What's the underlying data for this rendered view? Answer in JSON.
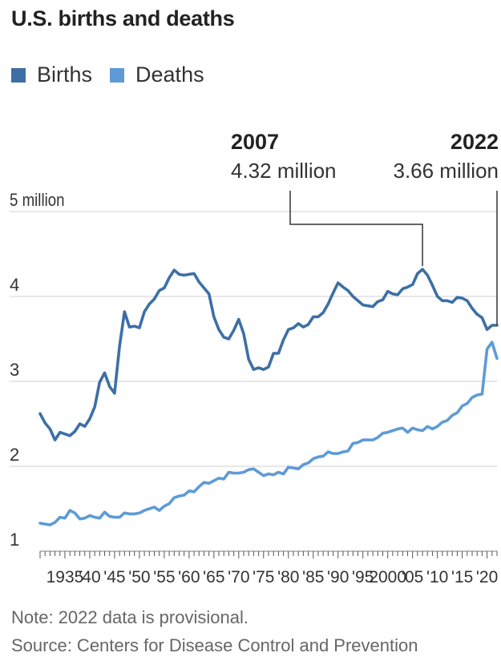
{
  "header": {
    "title": "U.S. births and deaths"
  },
  "footer": {
    "note": "Note: 2022 data is provisional.",
    "source": "Source: Centers for Disease Control and Prevention"
  },
  "colors": {
    "births": "#3d6fa5",
    "deaths": "#5e9bd6",
    "grid": "#d9d9d9",
    "annotation": "#333333"
  },
  "chart_data": {
    "type": "line",
    "title": "U.S. births and deaths",
    "ylim": [
      1,
      5
    ],
    "xlim": [
      1930,
      2022
    ],
    "y_ticks": [
      {
        "value": 5,
        "label": "5 million"
      },
      {
        "value": 4,
        "label": "4"
      },
      {
        "value": 3,
        "label": "3"
      },
      {
        "value": 2,
        "label": "2"
      },
      {
        "value": 1,
        "label": "1"
      }
    ],
    "x_tick_labels": [
      {
        "value": 1935,
        "label": "1935"
      },
      {
        "value": 1940,
        "label": "'40"
      },
      {
        "value": 1945,
        "label": "'45"
      },
      {
        "value": 1950,
        "label": "'50"
      },
      {
        "value": 1955,
        "label": "'55"
      },
      {
        "value": 1960,
        "label": "'60"
      },
      {
        "value": 1965,
        "label": "'65"
      },
      {
        "value": 1970,
        "label": "'70"
      },
      {
        "value": 1975,
        "label": "'75"
      },
      {
        "value": 1980,
        "label": "'80"
      },
      {
        "value": 1985,
        "label": "'85"
      },
      {
        "value": 1990,
        "label": "'90"
      },
      {
        "value": 1995,
        "label": "'95"
      },
      {
        "value": 2000,
        "label": "2000"
      },
      {
        "value": 2005,
        "label": "'05"
      },
      {
        "value": 2010,
        "label": "'10"
      },
      {
        "value": 2015,
        "label": "'15"
      },
      {
        "value": 2020,
        "label": "'20"
      }
    ],
    "grid": true,
    "legend_position": "top-left",
    "series": [
      {
        "name": "Births",
        "points": [
          [
            1930,
            2.62
          ],
          [
            1931,
            2.51
          ],
          [
            1932,
            2.44
          ],
          [
            1933,
            2.31
          ],
          [
            1934,
            2.4
          ],
          [
            1935,
            2.38
          ],
          [
            1936,
            2.36
          ],
          [
            1937,
            2.41
          ],
          [
            1938,
            2.5
          ],
          [
            1939,
            2.47
          ],
          [
            1940,
            2.56
          ],
          [
            1941,
            2.7
          ],
          [
            1942,
            2.99
          ],
          [
            1943,
            3.1
          ],
          [
            1944,
            2.94
          ],
          [
            1945,
            2.86
          ],
          [
            1946,
            3.41
          ],
          [
            1947,
            3.82
          ],
          [
            1948,
            3.64
          ],
          [
            1949,
            3.65
          ],
          [
            1950,
            3.63
          ],
          [
            1951,
            3.82
          ],
          [
            1952,
            3.91
          ],
          [
            1953,
            3.97
          ],
          [
            1954,
            4.07
          ],
          [
            1955,
            4.1
          ],
          [
            1956,
            4.22
          ],
          [
            1957,
            4.31
          ],
          [
            1958,
            4.26
          ],
          [
            1959,
            4.25
          ],
          [
            1960,
            4.26
          ],
          [
            1961,
            4.27
          ],
          [
            1962,
            4.17
          ],
          [
            1963,
            4.1
          ],
          [
            1964,
            4.03
          ],
          [
            1965,
            3.76
          ],
          [
            1966,
            3.61
          ],
          [
            1967,
            3.52
          ],
          [
            1968,
            3.5
          ],
          [
            1969,
            3.6
          ],
          [
            1970,
            3.73
          ],
          [
            1971,
            3.56
          ],
          [
            1972,
            3.26
          ],
          [
            1973,
            3.14
          ],
          [
            1974,
            3.16
          ],
          [
            1975,
            3.14
          ],
          [
            1976,
            3.17
          ],
          [
            1977,
            3.33
          ],
          [
            1978,
            3.33
          ],
          [
            1979,
            3.49
          ],
          [
            1980,
            3.61
          ],
          [
            1981,
            3.63
          ],
          [
            1982,
            3.68
          ],
          [
            1983,
            3.64
          ],
          [
            1984,
            3.67
          ],
          [
            1985,
            3.76
          ],
          [
            1986,
            3.76
          ],
          [
            1987,
            3.81
          ],
          [
            1988,
            3.91
          ],
          [
            1989,
            4.04
          ],
          [
            1990,
            4.16
          ],
          [
            1991,
            4.11
          ],
          [
            1992,
            4.07
          ],
          [
            1993,
            4.0
          ],
          [
            1994,
            3.95
          ],
          [
            1995,
            3.9
          ],
          [
            1996,
            3.89
          ],
          [
            1997,
            3.88
          ],
          [
            1998,
            3.94
          ],
          [
            1999,
            3.96
          ],
          [
            2000,
            4.06
          ],
          [
            2001,
            4.03
          ],
          [
            2002,
            4.02
          ],
          [
            2003,
            4.09
          ],
          [
            2004,
            4.11
          ],
          [
            2005,
            4.14
          ],
          [
            2006,
            4.27
          ],
          [
            2007,
            4.32
          ],
          [
            2008,
            4.25
          ],
          [
            2009,
            4.13
          ],
          [
            2010,
            4.0
          ],
          [
            2011,
            3.95
          ],
          [
            2012,
            3.95
          ],
          [
            2013,
            3.93
          ],
          [
            2014,
            3.99
          ],
          [
            2015,
            3.98
          ],
          [
            2016,
            3.95
          ],
          [
            2017,
            3.86
          ],
          [
            2018,
            3.79
          ],
          [
            2019,
            3.75
          ],
          [
            2020,
            3.61
          ],
          [
            2021,
            3.66
          ],
          [
            2022,
            3.66
          ]
        ]
      },
      {
        "name": "Deaths",
        "points": [
          [
            1930,
            1.33
          ],
          [
            1931,
            1.32
          ],
          [
            1932,
            1.31
          ],
          [
            1933,
            1.34
          ],
          [
            1934,
            1.4
          ],
          [
            1935,
            1.39
          ],
          [
            1936,
            1.48
          ],
          [
            1937,
            1.45
          ],
          [
            1938,
            1.38
          ],
          [
            1939,
            1.39
          ],
          [
            1940,
            1.42
          ],
          [
            1941,
            1.4
          ],
          [
            1942,
            1.39
          ],
          [
            1943,
            1.46
          ],
          [
            1944,
            1.41
          ],
          [
            1945,
            1.4
          ],
          [
            1946,
            1.4
          ],
          [
            1947,
            1.45
          ],
          [
            1948,
            1.44
          ],
          [
            1949,
            1.44
          ],
          [
            1950,
            1.45
          ],
          [
            1951,
            1.48
          ],
          [
            1952,
            1.5
          ],
          [
            1953,
            1.52
          ],
          [
            1954,
            1.48
          ],
          [
            1955,
            1.53
          ],
          [
            1956,
            1.56
          ],
          [
            1957,
            1.63
          ],
          [
            1958,
            1.65
          ],
          [
            1959,
            1.66
          ],
          [
            1960,
            1.71
          ],
          [
            1961,
            1.7
          ],
          [
            1962,
            1.76
          ],
          [
            1963,
            1.81
          ],
          [
            1964,
            1.8
          ],
          [
            1965,
            1.83
          ],
          [
            1966,
            1.86
          ],
          [
            1967,
            1.85
          ],
          [
            1968,
            1.93
          ],
          [
            1969,
            1.92
          ],
          [
            1970,
            1.92
          ],
          [
            1971,
            1.93
          ],
          [
            1972,
            1.96
          ],
          [
            1973,
            1.97
          ],
          [
            1974,
            1.93
          ],
          [
            1975,
            1.89
          ],
          [
            1976,
            1.91
          ],
          [
            1977,
            1.9
          ],
          [
            1978,
            1.93
          ],
          [
            1979,
            1.91
          ],
          [
            1980,
            1.99
          ],
          [
            1981,
            1.98
          ],
          [
            1982,
            1.97
          ],
          [
            1983,
            2.02
          ],
          [
            1984,
            2.04
          ],
          [
            1985,
            2.09
          ],
          [
            1986,
            2.11
          ],
          [
            1987,
            2.12
          ],
          [
            1988,
            2.17
          ],
          [
            1989,
            2.15
          ],
          [
            1990,
            2.15
          ],
          [
            1991,
            2.17
          ],
          [
            1992,
            2.18
          ],
          [
            1993,
            2.27
          ],
          [
            1994,
            2.28
          ],
          [
            1995,
            2.31
          ],
          [
            1996,
            2.31
          ],
          [
            1997,
            2.31
          ],
          [
            1998,
            2.34
          ],
          [
            1999,
            2.39
          ],
          [
            2000,
            2.4
          ],
          [
            2001,
            2.42
          ],
          [
            2002,
            2.44
          ],
          [
            2003,
            2.45
          ],
          [
            2004,
            2.4
          ],
          [
            2005,
            2.45
          ],
          [
            2006,
            2.43
          ],
          [
            2007,
            2.42
          ],
          [
            2008,
            2.47
          ],
          [
            2009,
            2.44
          ],
          [
            2010,
            2.47
          ],
          [
            2011,
            2.52
          ],
          [
            2012,
            2.54
          ],
          [
            2013,
            2.6
          ],
          [
            2014,
            2.63
          ],
          [
            2015,
            2.71
          ],
          [
            2016,
            2.74
          ],
          [
            2017,
            2.81
          ],
          [
            2018,
            2.84
          ],
          [
            2019,
            2.85
          ],
          [
            2020,
            3.38
          ],
          [
            2021,
            3.46
          ],
          [
            2022,
            3.27
          ]
        ]
      }
    ],
    "annotations": [
      {
        "year": 2007,
        "value": 4.32,
        "label_year": "2007",
        "label_value": "4.32 million"
      },
      {
        "year": 2022,
        "value": 3.66,
        "label_year": "2022",
        "label_value": "3.66 million"
      }
    ]
  }
}
